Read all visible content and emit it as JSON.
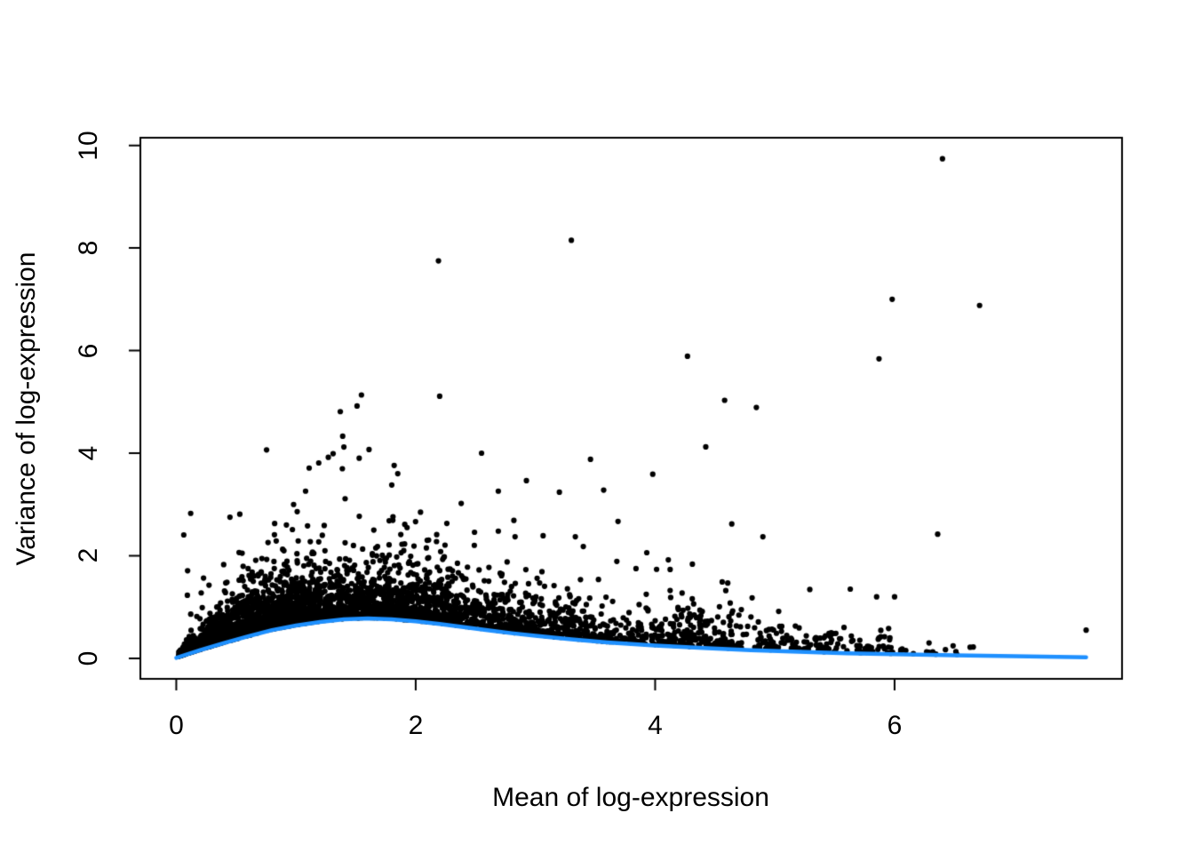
{
  "figure": {
    "background_color": "#ffffff",
    "title": ""
  },
  "chart_data": {
    "type": "scatter",
    "title": "",
    "xlabel": "Mean of log-expression",
    "ylabel": "Variance of log-expression",
    "x_ticks": [
      0,
      2,
      4,
      6
    ],
    "y_ticks": [
      0,
      2,
      4,
      6,
      8,
      10
    ],
    "xlim": [
      -0.3,
      7.9
    ],
    "ylim": [
      -0.4,
      10.15
    ],
    "grid": false,
    "legend": null,
    "point_color": "#000000",
    "point_radius": 3.1,
    "trend_color": "#1E90FF",
    "trend_line_width": 4.5,
    "frame_color": "#000000",
    "description": "Per-gene mean-variance scatter of log-expression values with a fitted blue trend curve; dense mass of black points hugs the trend from above, thinning toward high means, with scattered high-variance outliers.",
    "trend": {
      "x": [
        0,
        0.2,
        0.4,
        0.6,
        0.8,
        1.0,
        1.2,
        1.4,
        1.6,
        1.8,
        2.0,
        2.2,
        2.4,
        2.6,
        2.8,
        3.0,
        3.3,
        3.6,
        4.0,
        4.4,
        4.8,
        5.2,
        5.6,
        6.0,
        6.5,
        7.0,
        7.6
      ],
      "y": [
        0.01,
        0.16,
        0.3,
        0.43,
        0.55,
        0.64,
        0.71,
        0.76,
        0.78,
        0.76,
        0.72,
        0.67,
        0.61,
        0.55,
        0.49,
        0.44,
        0.37,
        0.31,
        0.25,
        0.2,
        0.16,
        0.13,
        0.1,
        0.08,
        0.06,
        0.04,
        0.02
      ]
    },
    "outliers": [
      [
        6.4,
        9.74
      ],
      [
        3.3,
        8.15
      ],
      [
        2.19,
        7.75
      ],
      [
        5.98,
        7.0
      ],
      [
        6.71,
        6.88
      ],
      [
        4.27,
        5.89
      ],
      [
        5.87,
        5.84
      ],
      [
        2.2,
        5.11
      ],
      [
        1.51,
        4.92
      ],
      [
        1.37,
        4.81
      ],
      [
        1.39,
        4.33
      ],
      [
        1.61,
        4.07
      ],
      [
        1.4,
        4.12
      ],
      [
        2.55,
        4.0
      ],
      [
        1.31,
        3.99
      ],
      [
        1.27,
        3.92
      ],
      [
        3.46,
        3.88
      ],
      [
        1.19,
        3.81
      ],
      [
        1.82,
        3.76
      ],
      [
        1.11,
        3.71
      ],
      [
        3.98,
        3.59
      ],
      [
        1.85,
        3.6
      ],
      [
        1.8,
        3.38
      ],
      [
        1.08,
        3.26
      ],
      [
        2.69,
        3.26
      ],
      [
        3.2,
        3.24
      ],
      [
        3.57,
        3.28
      ],
      [
        2.38,
        3.02
      ],
      [
        0.98,
        3.0
      ],
      [
        1.01,
        2.86
      ],
      [
        2.04,
        2.85
      ],
      [
        1.81,
        2.76
      ],
      [
        2.82,
        2.69
      ],
      [
        3.69,
        2.67
      ],
      [
        4.64,
        2.62
      ],
      [
        2.26,
        2.63
      ],
      [
        0.92,
        2.6
      ],
      [
        0.97,
        2.51
      ],
      [
        1.65,
        2.5
      ],
      [
        2.69,
        2.48
      ],
      [
        6.36,
        2.42
      ],
      [
        0.82,
        2.41
      ],
      [
        4.9,
        2.37
      ],
      [
        2.83,
        2.37
      ],
      [
        1.19,
        2.27
      ],
      [
        1.48,
        2.2
      ],
      [
        3.4,
        2.18
      ],
      [
        1.9,
        2.1
      ],
      [
        2.1,
        1.95
      ],
      [
        3.93,
        2.06
      ],
      [
        4.11,
        1.92
      ],
      [
        3.68,
        1.89
      ],
      [
        3.84,
        1.75
      ],
      [
        2.92,
        1.73
      ],
      [
        0.55,
        2.05
      ],
      [
        0.6,
        1.75
      ],
      [
        4.56,
        1.49
      ],
      [
        5.63,
        1.35
      ],
      [
        4.59,
        1.32
      ],
      [
        5.85,
        1.2
      ],
      [
        6.0,
        1.2
      ],
      [
        4.81,
        1.18
      ],
      [
        4.31,
        1.16
      ],
      [
        4.72,
        0.95
      ],
      [
        7.6,
        0.55
      ]
    ],
    "cloud": {
      "seed": 7,
      "exponent": 1.35,
      "tail_prob": 0.022,
      "tail_mean": 0.9,
      "min_offset": 0.015,
      "max_generated_y": 5.2,
      "ramp_x": 0.55,
      "ramp_pow": 0.8,
      "segments": [
        {
          "x0": 0.02,
          "x1": 0.5,
          "n": 750,
          "spread": 0.3
        },
        {
          "x0": 0.5,
          "x1": 1.2,
          "n": 1050,
          "spread": 0.38
        },
        {
          "x0": 1.2,
          "x1": 2.3,
          "n": 980,
          "spread": 0.42
        },
        {
          "x0": 2.3,
          "x1": 3.5,
          "n": 520,
          "spread": 0.38
        },
        {
          "x0": 3.5,
          "x1": 4.7,
          "n": 300,
          "spread": 0.3
        },
        {
          "x0": 4.7,
          "x1": 6.0,
          "n": 150,
          "spread": 0.2
        },
        {
          "x0": 6.0,
          "x1": 6.7,
          "n": 16,
          "spread": 0.14
        }
      ]
    }
  }
}
